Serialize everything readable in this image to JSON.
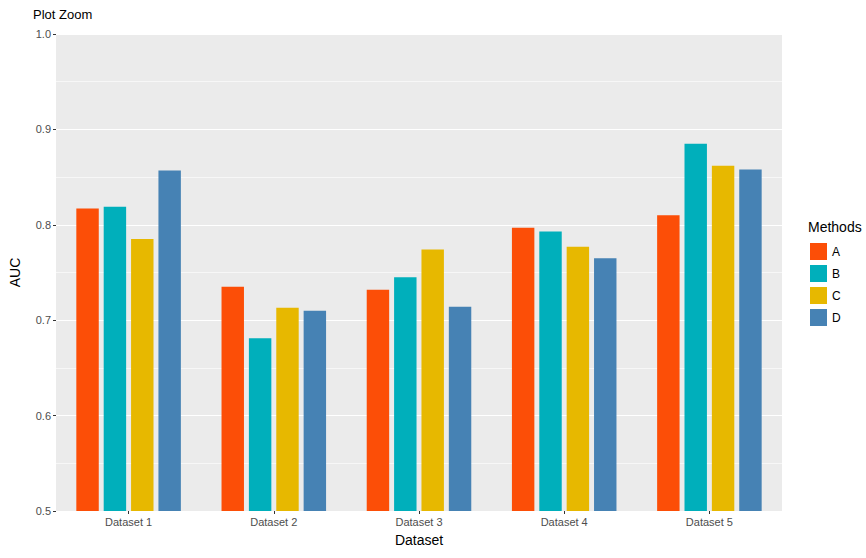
{
  "chart_data": {
    "type": "bar",
    "title": "Plot Zoom",
    "x_label": "Dataset",
    "y_label": "AUC",
    "legend_title": "Methods",
    "categories": [
      "Dataset 1",
      "Dataset 2",
      "Dataset 3",
      "Dataset 4",
      "Dataset 5"
    ],
    "series": [
      {
        "name": "A",
        "color": "#FC4E07",
        "values": [
          0.817,
          0.735,
          0.732,
          0.797,
          0.81
        ]
      },
      {
        "name": "B",
        "color": "#00AFBB",
        "values": [
          0.819,
          0.681,
          0.745,
          0.793,
          0.885
        ]
      },
      {
        "name": "C",
        "color": "#E7B800",
        "values": [
          0.785,
          0.713,
          0.774,
          0.777,
          0.862
        ]
      },
      {
        "name": "D",
        "color": "#4682B4",
        "values": [
          0.857,
          0.71,
          0.714,
          0.765,
          0.858
        ]
      }
    ],
    "ylim": [
      0.5,
      1
    ],
    "yticks": [
      0.5,
      0.6,
      0.7,
      0.8,
      0.9,
      {
        "value": 1,
        "label": "1.0"
      }
    ],
    "grid": true,
    "legend": "right"
  }
}
